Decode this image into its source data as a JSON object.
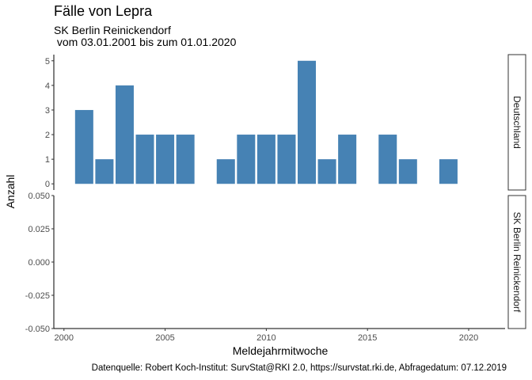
{
  "title": "Fälle von Lepra",
  "subtitle_line1": "SK Berlin Reinickendorf",
  "subtitle_line2": " vom 03.01.2001 bis zum 01.01.2020",
  "caption": "Datenquelle: Robert Koch-Institut: SurvStat@RKI 2.0, https://survstat.rki.de, Abfragedatum: 07.12.2019",
  "colors": {
    "bar": "#4682B4",
    "axis": "#000000",
    "tick_text": "#4d4d4d"
  },
  "chart_data": {
    "type": "bar",
    "xlabel": "Meldejahrmitwoche",
    "ylabel": "Anzahl",
    "xlim": [
      1999.5,
      2021.8
    ],
    "x_ticks": [
      2000,
      2005,
      2010,
      2015,
      2020
    ],
    "x_tick_labels": [
      "2000",
      "2005",
      "2010",
      "2015",
      "2020"
    ],
    "grid": false,
    "facets": [
      {
        "strip": "Deutschland",
        "ylim": [
          -0.25,
          5.25
        ],
        "y_ticks": [
          0,
          1,
          2,
          3,
          4,
          5
        ],
        "y_tick_labels": [
          "0",
          "1",
          "2",
          "3",
          "4",
          "5"
        ],
        "x": [
          2001,
          2002,
          2003,
          2004,
          2005,
          2006,
          2008,
          2009,
          2010,
          2011,
          2012,
          2013,
          2014,
          2016,
          2017,
          2019
        ],
        "values": [
          3,
          1,
          4,
          2,
          2,
          2,
          1,
          2,
          2,
          2,
          5,
          1,
          2,
          2,
          1,
          1
        ]
      },
      {
        "strip": "SK Berlin Reinickendorf",
        "ylim": [
          -0.05,
          0.05
        ],
        "y_ticks": [
          -0.05,
          -0.025,
          0,
          0.025,
          0.05
        ],
        "y_tick_labels": [
          "-0.050",
          "-0.025",
          "0.000",
          "0.025",
          "0.050"
        ],
        "x": [],
        "values": []
      }
    ]
  }
}
